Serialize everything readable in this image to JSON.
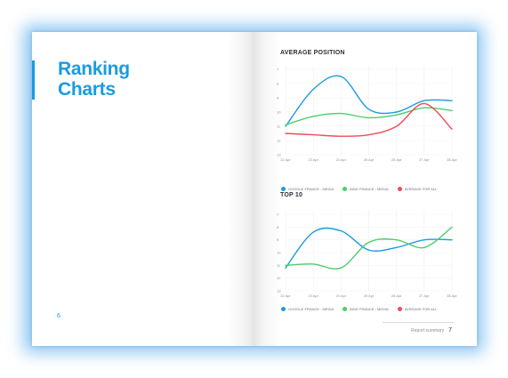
{
  "colors": {
    "accent": "#1a9be0",
    "series_blue": "#1a9be0",
    "series_green": "#4ccd6c",
    "series_red": "#ef4b57",
    "text_dark": "#2b2f36",
    "text_muted": "#8a8f98"
  },
  "left_page": {
    "title_line1": "Ranking",
    "title_line2": "Charts",
    "page_number": "6"
  },
  "right_page": {
    "footer_label": "Report summary",
    "page_number": "7"
  },
  "chart_data": [
    {
      "type": "line",
      "title": "AVERAGE POSITION",
      "xlabel": "",
      "ylabel": "",
      "x": [
        "22 Apr",
        "23 Apr",
        "24 Apr",
        "25 Apr",
        "26 Apr",
        "27 Apr",
        "28 Apr"
      ],
      "yticks": [
        7,
        8,
        9,
        10,
        11,
        12,
        13
      ],
      "ylim": [
        7,
        13
      ],
      "y_inverted": true,
      "grid": true,
      "legend_position": "bottom",
      "series": [
        {
          "name": "GOOGLE FRANCE - MEDIA",
          "color": "#1a9be0",
          "values": [
            11.0,
            8.4,
            7.5,
            9.8,
            10.0,
            9.2,
            9.2
          ]
        },
        {
          "name": "BING FRANCE - MEDIA",
          "color": "#4ccd6c",
          "values": [
            10.9,
            10.3,
            10.1,
            10.4,
            10.2,
            9.7,
            9.9
          ]
        },
        {
          "name": "AVERAGE FOR ALL",
          "color": "#ef4b57",
          "values": [
            11.5,
            11.6,
            11.7,
            11.6,
            11.0,
            9.4,
            11.2
          ]
        }
      ]
    },
    {
      "type": "line",
      "title": "TOP 10",
      "xlabel": "",
      "ylabel": "",
      "x": [
        "22 Apr",
        "23 Apr",
        "24 Apr",
        "25 Apr",
        "26 Apr",
        "27 Apr",
        "28 Apr"
      ],
      "yticks": [
        7,
        8,
        9,
        10,
        11,
        12,
        13
      ],
      "ylim": [
        7,
        13
      ],
      "y_inverted": true,
      "grid": true,
      "legend_position": "bottom",
      "series": [
        {
          "name": "GOOGLE FRANCE - MEDIA",
          "color": "#1a9be0",
          "values": [
            11.2,
            8.4,
            8.3,
            9.8,
            9.6,
            9.0,
            9.0
          ]
        },
        {
          "name": "BING FRANCE - MEDIA",
          "color": "#4ccd6c",
          "values": [
            11.0,
            10.9,
            11.2,
            9.2,
            9.0,
            9.6,
            8.0
          ]
        }
      ]
    }
  ]
}
